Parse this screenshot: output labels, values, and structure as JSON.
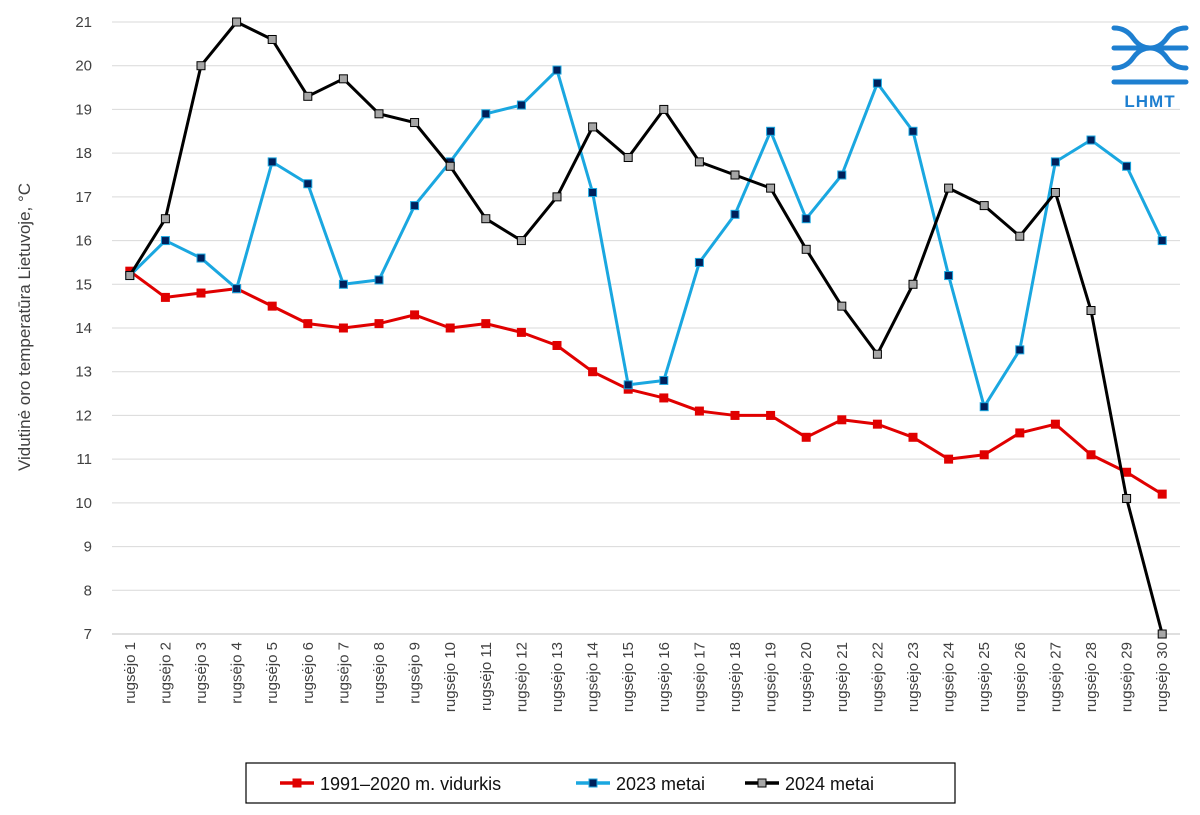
{
  "chart_data": {
    "type": "line",
    "title": "",
    "xlabel": "",
    "ylabel": "Vidutinė oro temperatūra Lietuvoje, °C",
    "ylim": [
      7,
      21
    ],
    "yticks": [
      7,
      8,
      9,
      10,
      11,
      12,
      13,
      14,
      15,
      16,
      17,
      18,
      19,
      20,
      21
    ],
    "grid": "horizontal",
    "legend_position": "bottom",
    "categories": [
      "rugsėjo 1",
      "rugsėjo 2",
      "rugsėjo 3",
      "rugsėjo 4",
      "rugsėjo 5",
      "rugsėjo 6",
      "rugsėjo 7",
      "rugsėjo 8",
      "rugsėjo 9",
      "rugsėjo 10",
      "rugsėjo 11",
      "rugsėjo 12",
      "rugsėjo 13",
      "rugsėjo 14",
      "rugsėjo 15",
      "rugsėjo 16",
      "rugsėjo 17",
      "rugsėjo 18",
      "rugsėjo 19",
      "rugsėjo 20",
      "rugsėjo 21",
      "rugsėjo 22",
      "rugsėjo 23",
      "rugsėjo 24",
      "rugsėjo 25",
      "rugsėjo 26",
      "rugsėjo 27",
      "rugsėjo 28",
      "rugsėjo 29",
      "rugsėjo 30"
    ],
    "series": [
      {
        "name": "1991–2020 m. vidurkis",
        "color": "#e00000",
        "marker": "square",
        "marker_fill": "#e00000",
        "values": [
          15.3,
          14.7,
          14.8,
          14.9,
          14.5,
          14.1,
          14.0,
          14.1,
          14.3,
          14.0,
          14.1,
          13.9,
          13.6,
          13.0,
          12.6,
          12.4,
          12.1,
          12.0,
          12.0,
          11.5,
          11.9,
          11.8,
          11.5,
          11.0,
          11.1,
          11.6,
          11.8,
          11.1,
          10.7,
          10.2
        ]
      },
      {
        "name": "2023 metai",
        "color": "#1aa7e0",
        "marker": "square",
        "marker_fill": "#00205b",
        "values": [
          15.2,
          16.0,
          15.6,
          14.9,
          17.8,
          17.3,
          15.0,
          15.1,
          16.8,
          17.8,
          18.9,
          19.1,
          19.9,
          17.1,
          12.7,
          12.8,
          15.5,
          16.6,
          18.5,
          16.5,
          17.5,
          19.6,
          18.5,
          15.2,
          12.2,
          13.5,
          17.8,
          18.3,
          17.7,
          16.0
        ]
      },
      {
        "name": "2024 metai",
        "color": "#000000",
        "marker": "square",
        "marker_fill": "#a6a6a6",
        "values": [
          15.2,
          16.5,
          20.0,
          21.0,
          20.6,
          19.3,
          19.7,
          18.9,
          18.7,
          17.7,
          16.5,
          16.0,
          17.0,
          18.6,
          17.9,
          19.0,
          17.8,
          17.5,
          17.2,
          15.8,
          14.5,
          13.4,
          15.0,
          17.2,
          16.8,
          16.1,
          17.1,
          14.4,
          10.1,
          7.0
        ]
      }
    ]
  },
  "logo": {
    "text": "LHMT",
    "color": "#1e7fd0"
  }
}
